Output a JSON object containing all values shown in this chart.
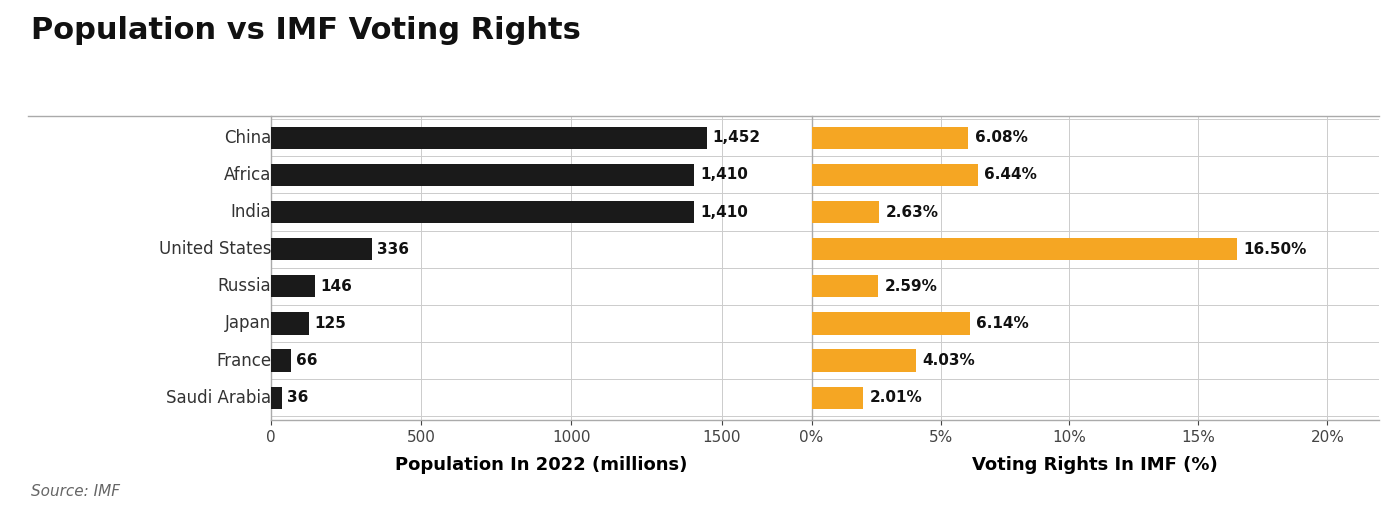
{
  "title": "Population vs IMF Voting Rights",
  "categories": [
    "China",
    "Africa",
    "India",
    "United States",
    "Russia",
    "Japan",
    "France",
    "Saudi Arabia"
  ],
  "population": [
    1452,
    1410,
    1410,
    336,
    146,
    125,
    66,
    36
  ],
  "voting_rights": [
    6.08,
    6.44,
    2.63,
    16.5,
    2.59,
    6.14,
    4.03,
    2.01
  ],
  "pop_labels": [
    "1,452",
    "1,410",
    "1,410",
    "336",
    "146",
    "125",
    "66",
    "36"
  ],
  "vote_labels": [
    "6.08%",
    "6.44%",
    "2.63%",
    "16.50%",
    "2.59%",
    "6.14%",
    "4.03%",
    "2.01%"
  ],
  "pop_color": "#1a1a1a",
  "vote_color": "#F5A623",
  "pop_xlim": [
    0,
    1800
  ],
  "vote_xlim": [
    0,
    22
  ],
  "pop_xticks": [
    0,
    500,
    1000,
    1500
  ],
  "vote_xticks": [
    0,
    5,
    10,
    15,
    20
  ],
  "vote_xticklabels": [
    "0%",
    "5%",
    "10%",
    "15%",
    "20%"
  ],
  "pop_xlabel": "Population In 2022 (millions)",
  "vote_xlabel": "Voting Rights In IMF (%)",
  "source": "Source: IMF",
  "bg_color": "#ffffff",
  "title_fontsize": 22,
  "bar_label_fontsize": 11,
  "cat_label_fontsize": 12,
  "tick_fontsize": 11,
  "xlabel_fontsize": 13,
  "source_fontsize": 11,
  "bar_height": 0.6,
  "divider_color": "#aaaaaa",
  "grid_color": "#cccccc"
}
